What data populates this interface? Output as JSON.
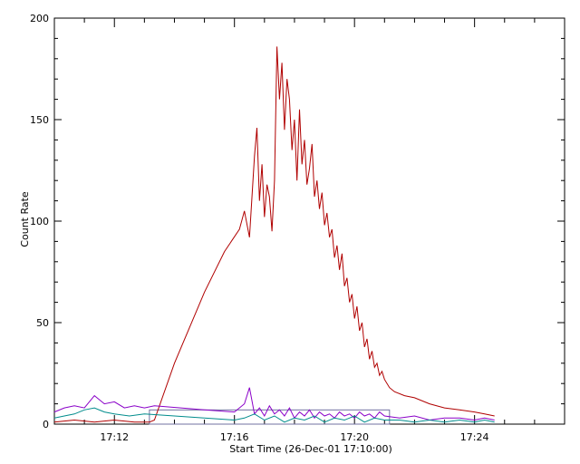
{
  "chart_data": {
    "type": "line",
    "title": "",
    "xlabel": "Start Time (26-Dec-01 17:10:00)",
    "ylabel": "Count Rate",
    "xlim": [
      "17:10:00",
      "17:27:00"
    ],
    "ylim": [
      0,
      200
    ],
    "x_ticks": [
      "17:12",
      "17:16",
      "17:20",
      "17:24"
    ],
    "y_ticks": [
      0,
      50,
      100,
      150,
      200
    ],
    "grid": false,
    "legend": "none",
    "colors": {
      "axis": "#000000",
      "red": "#b00000",
      "purple": "#8a00c8",
      "teal": "#008c8c",
      "box": "#7070a0"
    },
    "series": [
      {
        "color": "#b00000",
        "x": [
          "17:10:00",
          "17:10:40",
          "17:11:20",
          "17:12:00",
          "17:12:40",
          "17:13:10",
          "17:13:20",
          "17:14:00",
          "17:15:00",
          "17:15:40",
          "17:16:10",
          "17:16:20",
          "17:16:30",
          "17:16:40",
          "17:16:45",
          "17:16:50",
          "17:16:55",
          "17:17:00",
          "17:17:05",
          "17:17:10",
          "17:17:15",
          "17:17:20",
          "17:17:25",
          "17:17:30",
          "17:17:35",
          "17:17:40",
          "17:17:45",
          "17:17:50",
          "17:17:55",
          "17:18:00",
          "17:18:05",
          "17:18:10",
          "17:18:15",
          "17:18:20",
          "17:18:25",
          "17:18:30",
          "17:18:35",
          "17:18:40",
          "17:18:45",
          "17:18:50",
          "17:18:55",
          "17:19:00",
          "17:19:05",
          "17:19:10",
          "17:19:15",
          "17:19:20",
          "17:19:25",
          "17:19:30",
          "17:19:35",
          "17:19:40",
          "17:19:45",
          "17:19:50",
          "17:19:55",
          "17:20:00",
          "17:20:05",
          "17:20:10",
          "17:20:15",
          "17:20:20",
          "17:20:25",
          "17:20:30",
          "17:20:35",
          "17:20:40",
          "17:20:45",
          "17:20:50",
          "17:20:55",
          "17:21:00",
          "17:21:10",
          "17:21:20",
          "17:21:40",
          "17:22:00",
          "17:22:30",
          "17:23:00",
          "17:23:30",
          "17:24:00",
          "17:24:20",
          "17:24:40"
        ],
        "y": [
          1,
          2,
          1,
          2,
          1,
          1,
          2,
          30,
          65,
          85,
          96,
          105,
          92,
          132,
          146,
          110,
          128,
          102,
          118,
          112,
          95,
          120,
          186,
          160,
          178,
          145,
          170,
          160,
          135,
          150,
          120,
          155,
          128,
          140,
          118,
          126,
          138,
          112,
          120,
          106,
          114,
          98,
          104,
          92,
          96,
          82,
          88,
          76,
          84,
          68,
          72,
          60,
          64,
          52,
          58,
          46,
          50,
          38,
          42,
          32,
          36,
          28,
          30,
          24,
          26,
          22,
          18,
          16,
          14,
          13,
          10,
          8,
          7,
          6,
          5,
          4
        ]
      },
      {
        "color": "#8a00c8",
        "x": [
          "17:10:00",
          "17:10:20",
          "17:10:40",
          "17:11:00",
          "17:11:20",
          "17:11:40",
          "17:12:00",
          "17:12:20",
          "17:12:40",
          "17:13:00",
          "17:13:20",
          "17:15:00",
          "17:16:00",
          "17:16:20",
          "17:16:30",
          "17:16:40",
          "17:16:50",
          "17:17:00",
          "17:17:10",
          "17:17:20",
          "17:17:30",
          "17:17:40",
          "17:17:50",
          "17:18:00",
          "17:18:10",
          "17:18:20",
          "17:18:30",
          "17:18:40",
          "17:18:50",
          "17:19:00",
          "17:19:10",
          "17:19:20",
          "17:19:30",
          "17:19:40",
          "17:19:50",
          "17:20:00",
          "17:20:10",
          "17:20:20",
          "17:20:30",
          "17:20:40",
          "17:20:50",
          "17:21:00",
          "17:21:30",
          "17:22:00",
          "17:22:30",
          "17:23:00",
          "17:23:30",
          "17:24:00",
          "17:24:20",
          "17:24:40"
        ],
        "y": [
          6,
          8,
          9,
          8,
          14,
          10,
          11,
          8,
          9,
          8,
          9,
          7,
          6,
          10,
          18,
          5,
          8,
          4,
          9,
          5,
          7,
          4,
          8,
          3,
          6,
          4,
          7,
          3,
          6,
          4,
          5,
          3,
          6,
          4,
          5,
          3,
          6,
          4,
          5,
          3,
          6,
          4,
          3,
          4,
          2,
          3,
          3,
          2,
          3,
          2
        ]
      },
      {
        "color": "#008c8c",
        "x": [
          "17:10:00",
          "17:10:20",
          "17:10:40",
          "17:11:00",
          "17:11:20",
          "17:11:40",
          "17:12:00",
          "17:12:30",
          "17:13:00",
          "17:14:00",
          "17:15:00",
          "17:16:00",
          "17:16:20",
          "17:16:40",
          "17:17:00",
          "17:17:20",
          "17:17:40",
          "17:18:00",
          "17:18:20",
          "17:18:40",
          "17:19:00",
          "17:19:20",
          "17:19:40",
          "17:20:00",
          "17:20:20",
          "17:20:40",
          "17:21:00",
          "17:21:30",
          "17:22:00",
          "17:22:30",
          "17:23:00",
          "17:23:30",
          "17:24:00",
          "17:24:20",
          "17:24:40"
        ],
        "y": [
          3,
          4,
          5,
          7,
          8,
          6,
          5,
          4,
          5,
          4,
          3,
          2,
          3,
          5,
          2,
          4,
          1,
          3,
          2,
          4,
          1,
          3,
          2,
          4,
          1,
          3,
          2,
          2,
          1,
          2,
          1,
          2,
          1,
          2,
          1
        ]
      }
    ]
  }
}
